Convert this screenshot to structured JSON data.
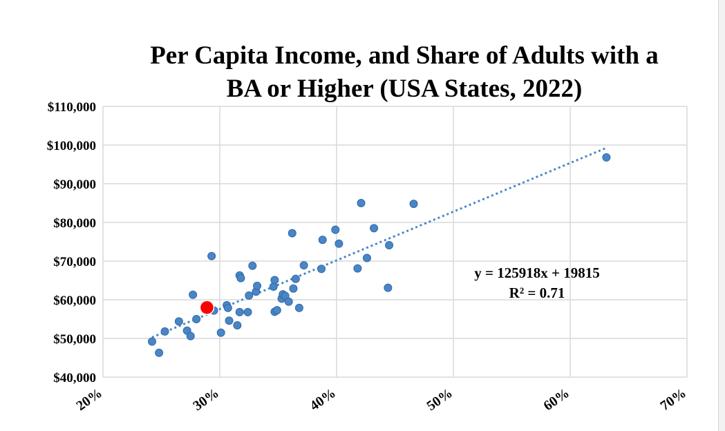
{
  "chart_data": {
    "type": "scatter",
    "title": "Per Capita Income, and Share of Adults with a BA or Higher (USA States, 2022)",
    "title_lines": [
      "Per Capita Income, and Share of Adults with a",
      "BA or Higher (USA States, 2022)"
    ],
    "xlabel": "",
    "ylabel": "",
    "xlim": [
      0.2,
      0.7
    ],
    "ylim": [
      40000,
      110000
    ],
    "x_ticks": [
      0.2,
      0.3,
      0.4,
      0.5,
      0.6,
      0.7
    ],
    "x_tick_labels": [
      "20%",
      "30%",
      "40%",
      "50%",
      "60%",
      "70%"
    ],
    "y_ticks": [
      40000,
      50000,
      60000,
      70000,
      80000,
      90000,
      100000,
      110000
    ],
    "y_tick_labels": [
      "$40,000",
      "$50,000",
      "$60,000",
      "$70,000",
      "$80,000",
      "$90,000",
      "$100,000",
      "$110,000"
    ],
    "grid": true,
    "series": [
      {
        "color": "#4a86c5",
        "points": [
          [
            0.242,
            49200
          ],
          [
            0.248,
            46300
          ],
          [
            0.253,
            51800
          ],
          [
            0.265,
            54400
          ],
          [
            0.272,
            52000
          ],
          [
            0.275,
            50600
          ],
          [
            0.277,
            61300
          ],
          [
            0.28,
            55000
          ],
          [
            0.293,
            71300
          ],
          [
            0.295,
            57200
          ],
          [
            0.301,
            51500
          ],
          [
            0.306,
            58600
          ],
          [
            0.307,
            57900
          ],
          [
            0.308,
            54600
          ],
          [
            0.315,
            53400
          ],
          [
            0.317,
            56800
          ],
          [
            0.317,
            66300
          ],
          [
            0.318,
            65600
          ],
          [
            0.324,
            56800
          ],
          [
            0.325,
            61100
          ],
          [
            0.328,
            68800
          ],
          [
            0.331,
            62100
          ],
          [
            0.332,
            63600
          ],
          [
            0.346,
            63400
          ],
          [
            0.347,
            65100
          ],
          [
            0.347,
            56900
          ],
          [
            0.349,
            57300
          ],
          [
            0.353,
            60300
          ],
          [
            0.354,
            61400
          ],
          [
            0.356,
            61000
          ],
          [
            0.359,
            59500
          ],
          [
            0.362,
            77200
          ],
          [
            0.363,
            62900
          ],
          [
            0.365,
            65400
          ],
          [
            0.368,
            57900
          ],
          [
            0.372,
            68900
          ],
          [
            0.387,
            68000
          ],
          [
            0.388,
            75500
          ],
          [
            0.399,
            78100
          ],
          [
            0.402,
            74500
          ],
          [
            0.418,
            68100
          ],
          [
            0.421,
            85000
          ],
          [
            0.426,
            70800
          ],
          [
            0.432,
            78500
          ],
          [
            0.444,
            63100
          ],
          [
            0.445,
            74100
          ],
          [
            0.466,
            84800
          ],
          [
            0.631,
            96800
          ]
        ]
      },
      {
        "color": "#ff0000",
        "points": [
          [
            0.289,
            58000
          ]
        ]
      }
    ],
    "trendline": {
      "type": "linear",
      "slope": 125918,
      "intercept": 19815,
      "x_range": [
        0.242,
        0.631
      ],
      "color": "#4a86c5",
      "style": "dotted"
    },
    "annotations": [
      "y = 125918x + 19815",
      "R² = 0.71"
    ],
    "legend": "none"
  }
}
